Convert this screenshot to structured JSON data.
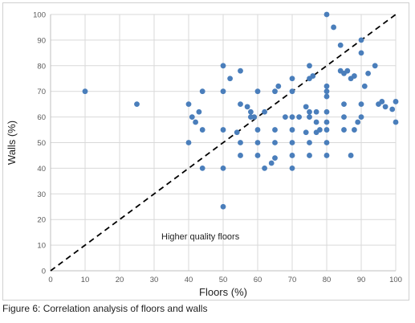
{
  "caption": "Figure 6: Correlation analysis of floors and walls",
  "chart_data": {
    "type": "scatter",
    "xlabel": "Floors (%)",
    "ylabel": "Walls (%)",
    "xlim": [
      0,
      100
    ],
    "ylim": [
      0,
      100
    ],
    "xticks": [
      "0",
      "10",
      "20",
      "30",
      "40",
      "50",
      "60",
      "70",
      "80",
      "90",
      "100"
    ],
    "yticks": [
      "0",
      "10",
      "20",
      "30",
      "40",
      "50",
      "60",
      "70",
      "80",
      "90",
      "100"
    ],
    "grid": "vertical and horizontal",
    "marker_color": "#4a7ebb",
    "reference_line": {
      "from": [
        0,
        0
      ],
      "to": [
        100,
        100
      ],
      "style": "dashed",
      "color": "#000000"
    },
    "annotation": "Higher quality floors",
    "points": [
      [
        10,
        70
      ],
      [
        25,
        65
      ],
      [
        40,
        65
      ],
      [
        40,
        50
      ],
      [
        41,
        60
      ],
      [
        42,
        58
      ],
      [
        43,
        62
      ],
      [
        44,
        70
      ],
      [
        44,
        55
      ],
      [
        44,
        40
      ],
      [
        50,
        80
      ],
      [
        50,
        70
      ],
      [
        50,
        55
      ],
      [
        50,
        40
      ],
      [
        50,
        25
      ],
      [
        52,
        75
      ],
      [
        54,
        54
      ],
      [
        55,
        78
      ],
      [
        55,
        65
      ],
      [
        55,
        50
      ],
      [
        55,
        45
      ],
      [
        57,
        64
      ],
      [
        58,
        62
      ],
      [
        58,
        60
      ],
      [
        59,
        60
      ],
      [
        60,
        70
      ],
      [
        60,
        55
      ],
      [
        60,
        50
      ],
      [
        60,
        45
      ],
      [
        62,
        62
      ],
      [
        62,
        40
      ],
      [
        64,
        42
      ],
      [
        65,
        70
      ],
      [
        65,
        55
      ],
      [
        65,
        50
      ],
      [
        65,
        44
      ],
      [
        66,
        72
      ],
      [
        68,
        60
      ],
      [
        70,
        75
      ],
      [
        70,
        70
      ],
      [
        70,
        60
      ],
      [
        70,
        55
      ],
      [
        70,
        50
      ],
      [
        70,
        45
      ],
      [
        70,
        40
      ],
      [
        72,
        60
      ],
      [
        74,
        64
      ],
      [
        74,
        54
      ],
      [
        75,
        80
      ],
      [
        75,
        75
      ],
      [
        75,
        62
      ],
      [
        75,
        60
      ],
      [
        75,
        50
      ],
      [
        75,
        45
      ],
      [
        76,
        76
      ],
      [
        77,
        62
      ],
      [
        77,
        58
      ],
      [
        77,
        54
      ],
      [
        78,
        55
      ],
      [
        80,
        100
      ],
      [
        80,
        72
      ],
      [
        80,
        70
      ],
      [
        80,
        68
      ],
      [
        80,
        62
      ],
      [
        80,
        58
      ],
      [
        80,
        55
      ],
      [
        80,
        50
      ],
      [
        80,
        45
      ],
      [
        82,
        95
      ],
      [
        84,
        88
      ],
      [
        84,
        78
      ],
      [
        85,
        77
      ],
      [
        85,
        65
      ],
      [
        85,
        60
      ],
      [
        85,
        55
      ],
      [
        86,
        78
      ],
      [
        87,
        75
      ],
      [
        87,
        45
      ],
      [
        88,
        76
      ],
      [
        88,
        55
      ],
      [
        89,
        58
      ],
      [
        90,
        90
      ],
      [
        90,
        85
      ],
      [
        90,
        65
      ],
      [
        90,
        60
      ],
      [
        91,
        72
      ],
      [
        92,
        77
      ],
      [
        94,
        80
      ],
      [
        95,
        65
      ],
      [
        96,
        66
      ],
      [
        97,
        64
      ],
      [
        99,
        63
      ],
      [
        100,
        66
      ],
      [
        100,
        58
      ]
    ]
  }
}
